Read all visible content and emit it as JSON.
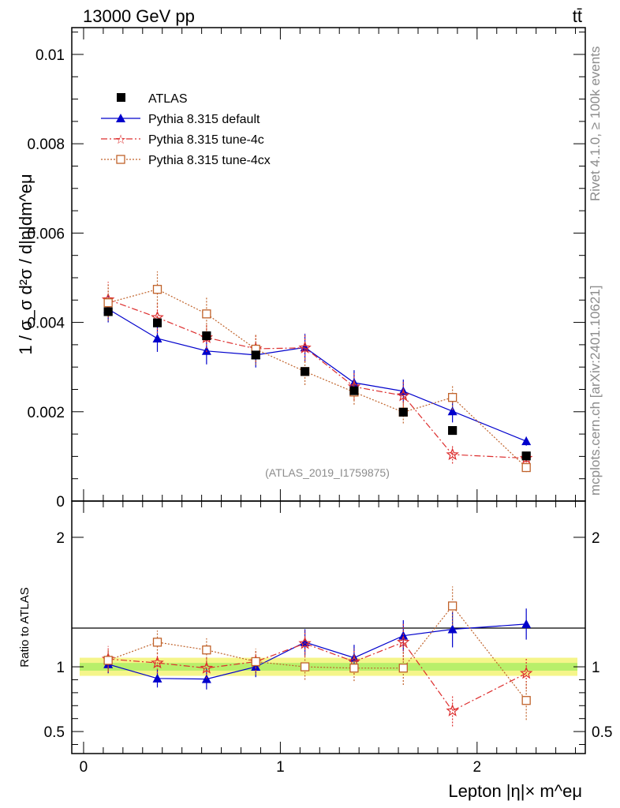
{
  "header": {
    "left_title": "13000 GeV pp",
    "right_title": "tt̄"
  },
  "side_labels": {
    "rivet": "Rivet 4.1.0, ≥ 100k events",
    "mcplots": "mcplots.cern.ch [arXiv:2401.10621]"
  },
  "colors": {
    "atlas": "#000000",
    "default": "#0000cc",
    "tune4c": "#dd2e2e",
    "tune4cx": "#c0622a",
    "band_outer": "#f5f58a",
    "band_inner": "#b8ef6a"
  },
  "chart_data": [
    {
      "type": "scatter",
      "panel": "main",
      "ylabel": "1 / σ_σ d²σ / d|η|dm^eμ",
      "xlabel": "Lepton |η|× m^eμ",
      "watermark": "(ATLAS_2019_I1759875)",
      "xlim": [
        -0.06,
        2.55
      ],
      "ylim": [
        0,
        0.0106
      ],
      "y_ticks": [
        "0",
        "0.002",
        "0.004",
        "0.006",
        "0.008",
        "0.01"
      ],
      "y_tick_values": [
        0,
        0.002,
        0.004,
        0.006,
        0.008,
        0.01
      ],
      "x": [
        0.125,
        0.375,
        0.625,
        0.875,
        1.125,
        1.375,
        1.625,
        1.875,
        2.25
      ],
      "series": [
        {
          "name": "ATLAS",
          "marker": "square",
          "values": [
            0.00424,
            0.00399,
            0.0037,
            0.00327,
            0.0029,
            0.00247,
            0.00199,
            0.00158,
            0.00101
          ]
        },
        {
          "name": "Pythia 8.315 default",
          "marker": "triangle",
          "line": "solid",
          "values": [
            0.0043,
            0.00364,
            0.00336,
            0.00327,
            0.00344,
            0.00265,
            0.00246,
            0.00201,
            0.00134
          ],
          "errors": [
            0.0003,
            0.0003,
            0.0003,
            0.00028,
            0.0003,
            0.00028,
            0.00026,
            0.00025,
            0.0001
          ]
        },
        {
          "name": "Pythia 8.315 tune-4c",
          "marker": "star",
          "line": "dashdot",
          "values": [
            0.00451,
            0.00411,
            0.00366,
            0.00341,
            0.00343,
            0.00256,
            0.00236,
            0.00104,
            0.00096
          ],
          "errors": [
            0.0004,
            0.00035,
            0.00032,
            0.0003,
            0.00032,
            0.0003,
            0.0003,
            0.0002,
            0.0001
          ]
        },
        {
          "name": "Pythia 8.315 tune-4cx",
          "marker": "open-square",
          "line": "dotted",
          "values": [
            0.00444,
            0.00474,
            0.00419,
            0.0034,
            0.0029,
            0.00244,
            0.00199,
            0.00232,
            0.00075
          ],
          "errors": [
            0.0004,
            0.0004,
            0.00038,
            0.00035,
            0.0003,
            0.00028,
            0.00025,
            0.00028,
            0.0001
          ]
        }
      ]
    },
    {
      "type": "scatter",
      "panel": "ratio",
      "ylabel": "Ratio to ATLAS",
      "xlim": [
        -0.06,
        2.55
      ],
      "ylim": [
        0.33,
        2.28
      ],
      "y_ticks_left": [
        "0.5",
        "1",
        "2"
      ],
      "y_ticks_right": [
        "0.5",
        "1",
        "2"
      ],
      "y_tick_values": [
        0.5,
        1,
        2
      ],
      "x_ticks": [
        "0",
        "1",
        "2"
      ],
      "x_tick_values": [
        0,
        1,
        2
      ],
      "x": [
        0.125,
        0.375,
        0.625,
        0.875,
        1.125,
        1.375,
        1.625,
        1.875,
        2.25
      ],
      "band": {
        "outer": 0.07,
        "inner": 0.03
      },
      "series": [
        {
          "name": "Pythia 8.315 default",
          "values": [
            1.02,
            0.91,
            0.905,
            1.0,
            1.19,
            1.07,
            1.24,
            1.29,
            1.33
          ],
          "errors": [
            0.07,
            0.07,
            0.08,
            0.08,
            0.1,
            0.1,
            0.12,
            0.14,
            0.12
          ]
        },
        {
          "name": "Pythia 8.315 tune-4c",
          "values": [
            1.06,
            1.03,
            0.99,
            1.04,
            1.18,
            1.04,
            1.19,
            0.66,
            0.95
          ],
          "errors": [
            0.1,
            0.08,
            0.08,
            0.08,
            0.1,
            0.1,
            0.14,
            0.12,
            0.12
          ]
        },
        {
          "name": "Pythia 8.315 tune-4cx",
          "values": [
            1.05,
            1.19,
            1.13,
            1.04,
            1.0,
            0.99,
            0.99,
            1.47,
            0.74
          ],
          "errors": [
            0.08,
            0.09,
            0.09,
            0.1,
            0.1,
            0.1,
            0.13,
            0.15,
            0.15
          ]
        }
      ]
    }
  ]
}
